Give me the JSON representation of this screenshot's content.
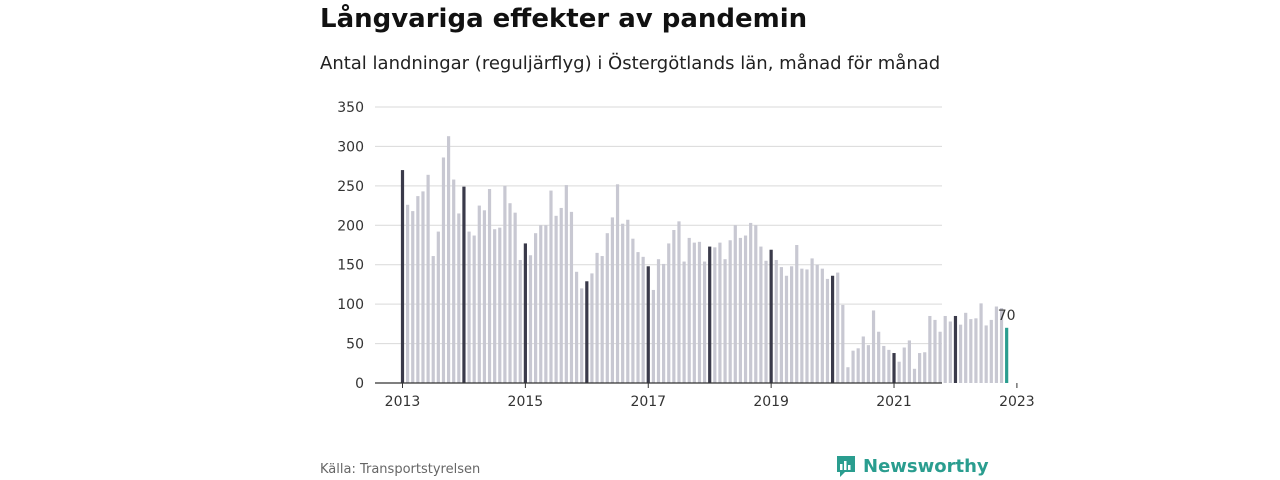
{
  "title": "Långvariga effekter av pandemin",
  "subtitle": "Antal landningar (reguljärflyg) i Östergötlands län, månad för månad",
  "source": "Källa: Transportstyrelsen",
  "brand": {
    "name": "Newsworthy",
    "icon": "bar-chart-speech-bubble-icon"
  },
  "colors": {
    "bar": "#c8c8d2",
    "january_bar": "#3a3a4a",
    "latest_bar": "#2a9d8f",
    "brand": "#2a9d8f",
    "grid": "#d9d9d9"
  },
  "chart_data": {
    "type": "bar",
    "title": "Långvariga effekter av pandemin",
    "subtitle": "Antal landningar (reguljärflyg) i Östergötlands län, månad för månad",
    "xlabel": "",
    "ylabel": "",
    "ylim": [
      0,
      350
    ],
    "y_ticks": [
      0,
      50,
      100,
      150,
      200,
      250,
      300,
      350
    ],
    "x_tick_labels": [
      "2013",
      "2015",
      "2017",
      "2019",
      "2021",
      "2023"
    ],
    "start_month": "2013-01",
    "grid": true,
    "highlight_last_label": "70",
    "values": [
      270,
      226,
      218,
      237,
      243,
      264,
      161,
      192,
      286,
      313,
      258,
      215,
      249,
      192,
      187,
      225,
      219,
      246,
      195,
      197,
      250,
      228,
      216,
      156,
      177,
      162,
      190,
      200,
      200,
      244,
      212,
      222,
      251,
      217,
      141,
      120,
      129,
      139,
      165,
      161,
      190,
      210,
      252,
      202,
      207,
      183,
      166,
      160,
      148,
      118,
      157,
      151,
      177,
      194,
      205,
      154,
      184,
      178,
      179,
      154,
      173,
      172,
      178,
      157,
      181,
      200,
      184,
      187,
      203,
      200,
      173,
      155,
      169,
      156,
      147,
      136,
      148,
      175,
      145,
      144,
      158,
      150,
      145,
      132,
      136,
      140,
      99,
      20,
      41,
      44,
      59,
      48,
      92,
      65,
      47,
      42,
      38,
      27,
      45,
      54,
      18,
      38,
      39,
      85,
      80,
      65,
      85,
      78,
      85,
      74,
      89,
      81,
      82,
      101,
      73,
      80,
      97,
      95,
      70
    ]
  }
}
